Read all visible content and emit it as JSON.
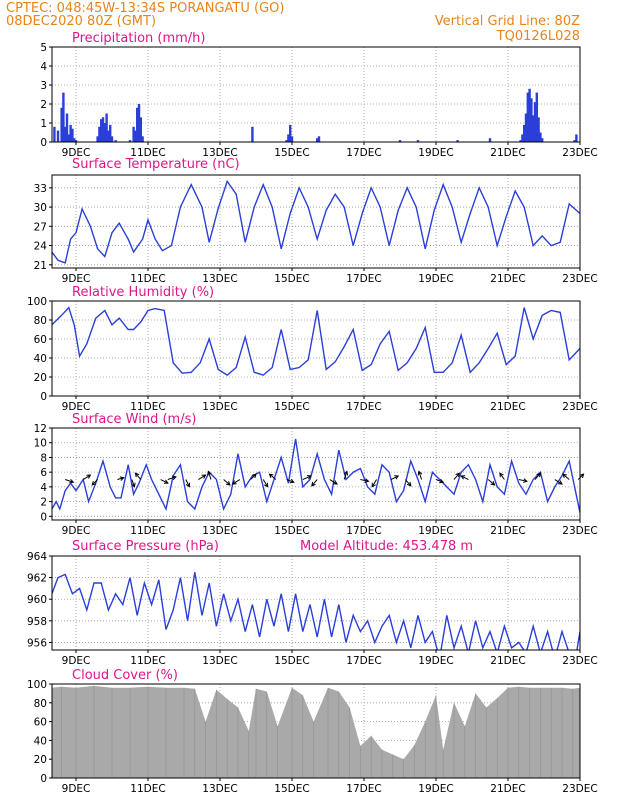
{
  "header": {
    "line1_left": "CPTEC:   048:45W-13:34S   PORANGATU (GO)",
    "line2_left": "08DEC2020 80Z (GMT)",
    "line1_right": "Vertical Grid Line: 80Z",
    "line2_right": "TQ0126L028",
    "model_altitude": "Model Altitude: 453.478 m"
  },
  "colors": {
    "header": "#e8841a",
    "title": "#e0158a",
    "line": "#2a3fd9",
    "cloud": "#a9a9a9",
    "grid": "#9a9a9a"
  },
  "x_axis": {
    "start_day": 8.333,
    "end_day": 23.0,
    "ticks": [
      {
        "day": 9,
        "label": "9DEC"
      },
      {
        "day": 11,
        "label": "11DEC"
      },
      {
        "day": 13,
        "label": "13DEC"
      },
      {
        "day": 15,
        "label": "15DEC"
      },
      {
        "day": 17,
        "label": "17DEC"
      },
      {
        "day": 19,
        "label": "19DEC"
      },
      {
        "day": 21,
        "label": "21DEC"
      },
      {
        "day": 23,
        "label": "23DEC"
      }
    ]
  },
  "chart_data": [
    {
      "type": "bar",
      "title": "Precipitation (mm/h)",
      "ylim": [
        0,
        5
      ],
      "yticks": [
        "0",
        "1",
        "2",
        "3",
        "4",
        "5"
      ],
      "x": [
        8.4,
        8.5,
        8.6,
        8.65,
        8.7,
        8.75,
        8.8,
        8.85,
        8.9,
        8.95,
        9.0,
        9.6,
        9.65,
        9.7,
        9.75,
        9.8,
        9.85,
        9.9,
        9.95,
        10.0,
        10.1,
        10.5,
        10.6,
        10.65,
        10.7,
        10.75,
        10.8,
        10.85,
        13.9,
        14.85,
        14.9,
        14.95,
        15.0,
        15.7,
        15.75,
        18.0,
        18.5,
        19.6,
        20.5,
        21.35,
        21.4,
        21.45,
        21.5,
        21.55,
        21.6,
        21.65,
        21.7,
        21.75,
        21.8,
        21.85,
        21.9,
        21.95,
        22.85,
        22.9
      ],
      "values": [
        0.8,
        0.6,
        1.8,
        2.6,
        0.8,
        1.5,
        0.4,
        0.9,
        0.7,
        0.2,
        0.1,
        0.3,
        0.8,
        1.2,
        1.3,
        1.0,
        1.5,
        0.6,
        0.9,
        0.3,
        0.1,
        0.1,
        0.8,
        0.6,
        1.8,
        2.0,
        1.3,
        0.3,
        0.8,
        0.1,
        0.4,
        0.9,
        0.3,
        0.2,
        0.3,
        0.1,
        0.1,
        0.1,
        0.2,
        0.1,
        0.4,
        0.9,
        1.5,
        2.6,
        2.8,
        2.3,
        1.4,
        2.1,
        2.6,
        1.3,
        0.5,
        0.2,
        0.1,
        0.4
      ]
    },
    {
      "type": "line",
      "title": "Surface Temperature (nC)",
      "ylim": [
        20.5,
        35
      ],
      "yticks": [
        "21",
        "24",
        "27",
        "30",
        "33"
      ],
      "x": [
        8.33,
        8.5,
        8.7,
        8.85,
        9.0,
        9.17,
        9.4,
        9.6,
        9.8,
        10.0,
        10.2,
        10.45,
        10.6,
        10.85,
        11.0,
        11.2,
        11.4,
        11.65,
        11.9,
        12.2,
        12.5,
        12.7,
        12.95,
        13.2,
        13.45,
        13.7,
        13.95,
        14.2,
        14.45,
        14.7,
        14.95,
        15.2,
        15.45,
        15.7,
        15.95,
        16.2,
        16.45,
        16.7,
        16.95,
        17.2,
        17.45,
        17.7,
        17.95,
        18.2,
        18.45,
        18.7,
        18.95,
        19.2,
        19.45,
        19.7,
        19.95,
        20.2,
        20.45,
        20.7,
        20.95,
        21.2,
        21.45,
        21.7,
        21.95,
        22.2,
        22.45,
        22.7,
        23.0
      ],
      "values": [
        23.0,
        21.7,
        21.3,
        25.0,
        26.0,
        29.7,
        27.0,
        23.5,
        22.3,
        26.0,
        27.5,
        25.0,
        23.0,
        25.0,
        28.0,
        25.0,
        23.2,
        24.0,
        30.0,
        33.5,
        30.0,
        24.5,
        29.8,
        34.0,
        32.0,
        24.5,
        30.0,
        33.5,
        30.0,
        23.5,
        29.0,
        33.0,
        30.0,
        25.0,
        29.5,
        32.0,
        30.0,
        24.0,
        29.0,
        33.0,
        30.0,
        24.0,
        29.5,
        33.0,
        30.0,
        23.5,
        29.5,
        33.5,
        30.0,
        24.5,
        29.0,
        33.0,
        30.0,
        24.0,
        28.5,
        32.5,
        30.0,
        24.0,
        25.5,
        24.0,
        24.5,
        30.5,
        29.0
      ]
    },
    {
      "type": "line",
      "title": "Relative Humidity (%)",
      "ylim": [
        0,
        100
      ],
      "yticks": [
        "0",
        "20",
        "40",
        "60",
        "80",
        "100"
      ],
      "x": [
        8.33,
        8.6,
        8.8,
        8.95,
        9.1,
        9.3,
        9.55,
        9.8,
        10.0,
        10.2,
        10.45,
        10.6,
        10.8,
        11.0,
        11.2,
        11.45,
        11.7,
        11.95,
        12.2,
        12.45,
        12.7,
        12.95,
        13.2,
        13.45,
        13.7,
        13.95,
        14.2,
        14.45,
        14.7,
        14.95,
        15.2,
        15.45,
        15.7,
        15.95,
        16.2,
        16.45,
        16.7,
        16.95,
        17.2,
        17.45,
        17.7,
        17.95,
        18.2,
        18.45,
        18.7,
        18.95,
        19.2,
        19.45,
        19.7,
        19.95,
        20.2,
        20.45,
        20.7,
        20.95,
        21.2,
        21.45,
        21.7,
        21.95,
        22.2,
        22.45,
        22.7,
        23.0
      ],
      "values": [
        75,
        85,
        93,
        75,
        42,
        55,
        82,
        90,
        75,
        82,
        70,
        70,
        78,
        90,
        92,
        90,
        35,
        24,
        25,
        35,
        60,
        28,
        22,
        30,
        62,
        25,
        22,
        30,
        70,
        28,
        30,
        38,
        90,
        28,
        36,
        52,
        70,
        27,
        33,
        55,
        68,
        27,
        35,
        50,
        72,
        25,
        25,
        35,
        64,
        25,
        35,
        50,
        66,
        33,
        42,
        93,
        60,
        85,
        90,
        88,
        38,
        50
      ]
    },
    {
      "type": "line",
      "title": "Surface Wind (m/s)",
      "ylim": [
        -0.5,
        12
      ],
      "yticks": [
        "0",
        "2",
        "4",
        "6",
        "8",
        "10",
        "12"
      ],
      "x": [
        8.33,
        8.45,
        8.55,
        8.7,
        8.85,
        9.0,
        9.2,
        9.35,
        9.55,
        9.75,
        9.95,
        10.1,
        10.25,
        10.45,
        10.6,
        10.75,
        10.95,
        11.1,
        11.3,
        11.5,
        11.7,
        11.9,
        12.1,
        12.3,
        12.5,
        12.7,
        12.9,
        13.1,
        13.3,
        13.5,
        13.7,
        13.9,
        14.1,
        14.3,
        14.5,
        14.7,
        14.9,
        15.1,
        15.3,
        15.5,
        15.7,
        15.9,
        16.1,
        16.3,
        16.5,
        16.7,
        16.9,
        17.1,
        17.3,
        17.5,
        17.7,
        17.9,
        18.1,
        18.3,
        18.5,
        18.7,
        18.9,
        19.1,
        19.3,
        19.5,
        19.7,
        19.9,
        20.1,
        20.3,
        20.5,
        20.7,
        20.9,
        21.1,
        21.3,
        21.5,
        21.7,
        21.9,
        22.1,
        22.3,
        22.5,
        22.7,
        22.85,
        23.0
      ],
      "values": [
        1,
        2,
        1,
        3.5,
        4.5,
        3.5,
        5,
        2,
        4.5,
        7.5,
        4,
        2.5,
        2.5,
        7,
        3,
        4.5,
        7,
        5,
        3,
        1,
        5.5,
        7,
        2,
        1,
        4,
        6,
        5,
        1,
        3,
        8.5,
        4,
        5.5,
        6,
        2,
        5,
        8,
        4.5,
        10.5,
        4,
        5,
        8.5,
        5,
        3,
        9,
        5,
        6,
        6.5,
        4,
        3,
        7,
        6,
        2,
        3.5,
        7.5,
        5,
        2,
        6,
        5,
        4,
        3,
        6,
        7,
        5,
        2,
        7,
        4,
        3,
        7.5,
        4.5,
        3,
        5,
        6,
        2,
        4,
        5.5,
        7.5,
        4,
        0.5
      ]
    },
    {
      "type": "line",
      "title": "Surface Pressure (hPa)",
      "ylim": [
        955.3,
        964
      ],
      "yticks": [
        "956",
        "958",
        "960",
        "962",
        "964"
      ],
      "x": [
        8.33,
        8.5,
        8.7,
        8.9,
        9.1,
        9.3,
        9.5,
        9.7,
        9.9,
        10.1,
        10.3,
        10.5,
        10.7,
        10.9,
        11.1,
        11.3,
        11.5,
        11.7,
        11.9,
        12.1,
        12.3,
        12.5,
        12.7,
        12.9,
        13.1,
        13.3,
        13.5,
        13.7,
        13.9,
        14.1,
        14.3,
        14.5,
        14.7,
        14.9,
        15.1,
        15.3,
        15.5,
        15.7,
        15.9,
        16.1,
        16.3,
        16.5,
        16.7,
        16.9,
        17.1,
        17.3,
        17.5,
        17.7,
        17.9,
        18.1,
        18.3,
        18.5,
        18.7,
        18.9,
        19.1,
        19.3,
        19.5,
        19.7,
        19.9,
        20.1,
        20.3,
        20.5,
        20.7,
        20.9,
        21.1,
        21.3,
        21.5,
        21.7,
        21.9,
        22.1,
        22.3,
        22.5,
        22.7,
        22.9,
        23.0
      ],
      "values": [
        960.5,
        962.0,
        962.3,
        960.5,
        961.0,
        959.0,
        961.5,
        961.5,
        959.0,
        960.5,
        959.5,
        962.0,
        958.5,
        961.5,
        959.5,
        961.8,
        957.2,
        959.0,
        962.0,
        958.0,
        962.5,
        958.5,
        961.5,
        957.5,
        960.5,
        958.0,
        960.0,
        957.0,
        959.5,
        956.5,
        960.0,
        957.5,
        960.5,
        957.0,
        960.5,
        957.0,
        959.5,
        956.5,
        960.0,
        956.5,
        959.5,
        956.0,
        958.5,
        957.0,
        958.0,
        956.0,
        957.5,
        958.5,
        956.0,
        958.0,
        955.5,
        958.5,
        956.0,
        957.0,
        954.5,
        958.5,
        955.5,
        957.5,
        955.0,
        958.0,
        955.5,
        957.0,
        955.0,
        957.5,
        955.5,
        956.0,
        955.0,
        957.5,
        955.0,
        957.0,
        954.5,
        957.0,
        955.0,
        955.0,
        957.0
      ]
    },
    {
      "type": "area",
      "title": "Cloud Cover (%)",
      "ylim": [
        0,
        100
      ],
      "yticks": [
        "0",
        "20",
        "40",
        "60",
        "80",
        "100"
      ],
      "x": [
        8.33,
        8.6,
        9.0,
        9.5,
        10.0,
        10.5,
        11.0,
        11.5,
        12.0,
        12.3,
        12.6,
        12.9,
        13.2,
        13.5,
        13.8,
        14.0,
        14.3,
        14.6,
        15.0,
        15.3,
        15.6,
        16.0,
        16.3,
        16.6,
        16.9,
        17.2,
        17.5,
        17.8,
        18.1,
        18.4,
        18.7,
        19.0,
        19.2,
        19.5,
        19.8,
        20.1,
        20.4,
        20.7,
        21.0,
        21.3,
        21.6,
        21.9,
        22.2,
        22.5,
        22.8,
        23.0
      ],
      "values": [
        96,
        97,
        96,
        98,
        96,
        96,
        97,
        96,
        96,
        95,
        60,
        94,
        84,
        75,
        50,
        95,
        92,
        55,
        96,
        88,
        60,
        96,
        92,
        75,
        34,
        45,
        30,
        25,
        20,
        35,
        60,
        88,
        30,
        80,
        55,
        90,
        75,
        85,
        96,
        97,
        96,
        96,
        96,
        96,
        95,
        96
      ]
    }
  ]
}
